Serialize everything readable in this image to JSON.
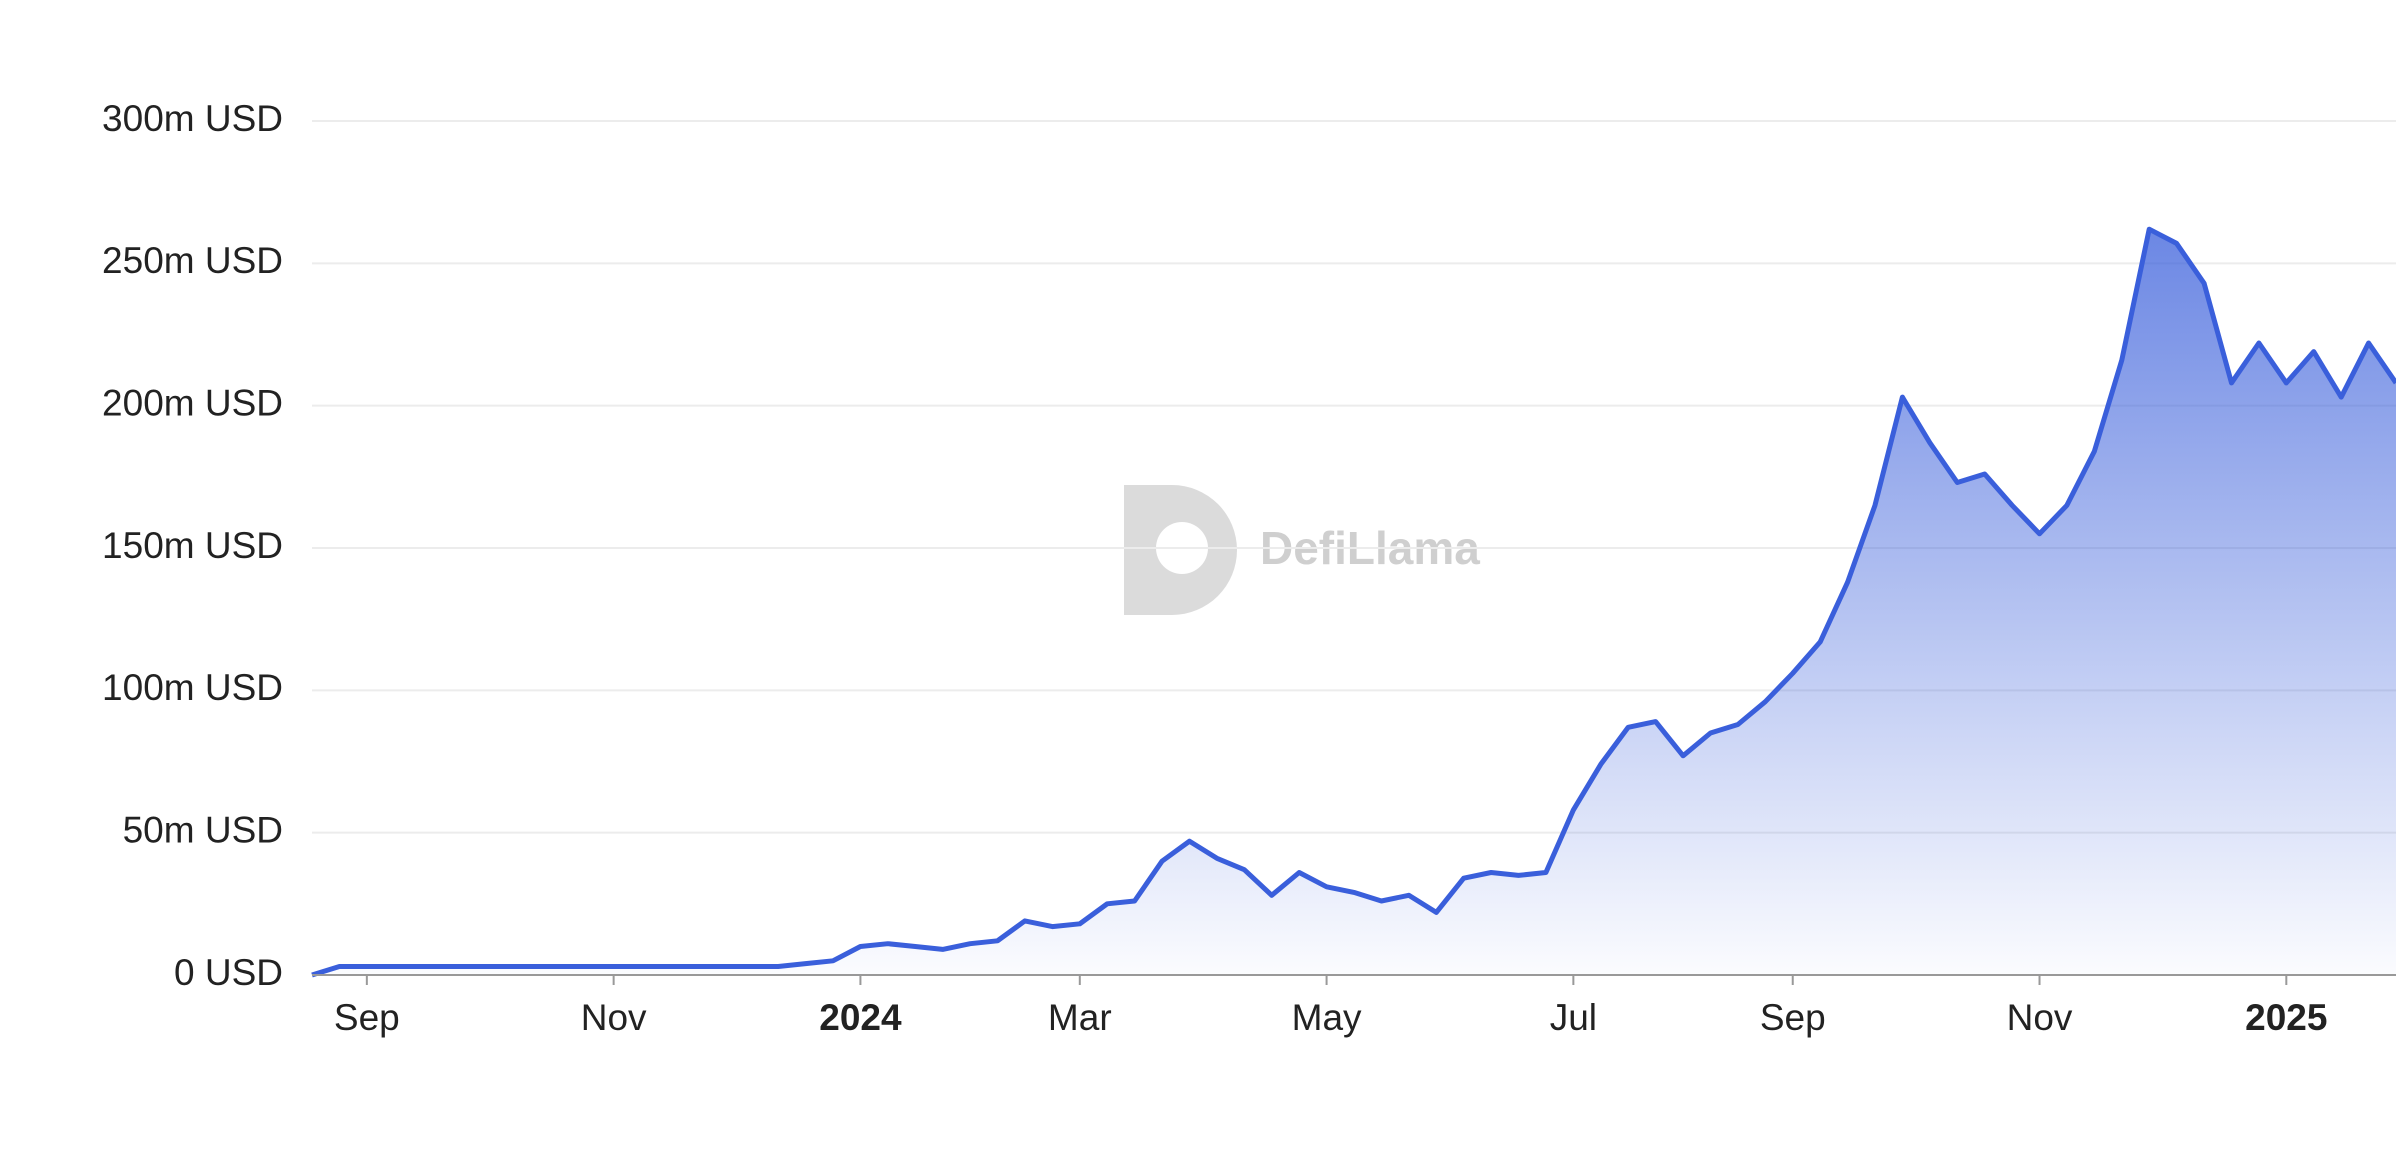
{
  "chart_data": {
    "type": "area",
    "watermark": "DefiLlama",
    "categories": [
      null,
      null,
      "Sep",
      null,
      null,
      null,
      null,
      null,
      null,
      null,
      null,
      "Nov",
      null,
      null,
      null,
      null,
      null,
      null,
      null,
      null,
      "2024",
      null,
      null,
      null,
      null,
      null,
      null,
      null,
      "Mar",
      null,
      null,
      null,
      null,
      null,
      null,
      null,
      null,
      "May",
      null,
      null,
      null,
      null,
      null,
      null,
      null,
      null,
      "Jul",
      null,
      null,
      null,
      null,
      null,
      null,
      null,
      "Sep",
      null,
      null,
      null,
      null,
      null,
      null,
      null,
      null,
      "Nov",
      null,
      null,
      null,
      null,
      null,
      null,
      null,
      null,
      "2025",
      null,
      null,
      null,
      null
    ],
    "values": [
      0,
      3,
      3,
      3,
      3,
      3,
      3,
      3,
      3,
      3,
      3,
      3,
      3,
      3,
      3,
      3,
      3,
      3,
      4,
      5,
      10,
      11,
      10,
      9,
      11,
      12,
      19,
      17,
      18,
      25,
      26,
      40,
      47,
      41,
      37,
      28,
      36,
      31,
      29,
      26,
      28,
      22,
      34,
      36,
      35,
      36,
      58,
      74,
      87,
      89,
      77,
      85,
      88,
      96,
      106,
      117,
      138,
      165,
      203,
      187,
      173,
      176,
      165,
      155,
      165,
      184,
      216,
      262,
      257,
      243,
      208,
      222,
      208,
      219,
      203,
      222,
      208
    ],
    "color": "#3a5fdb",
    "ylim": [
      0,
      300
    ],
    "yticks": [
      {
        "value": 0,
        "label": "0 USD"
      },
      {
        "value": 50,
        "label": "50m USD"
      },
      {
        "value": 100,
        "label": "100m USD"
      },
      {
        "value": 150,
        "label": "150m USD"
      },
      {
        "value": 200,
        "label": "200m USD"
      },
      {
        "value": 250,
        "label": "250m USD"
      },
      {
        "value": 300,
        "label": "300m USD"
      }
    ],
    "grid": true
  }
}
